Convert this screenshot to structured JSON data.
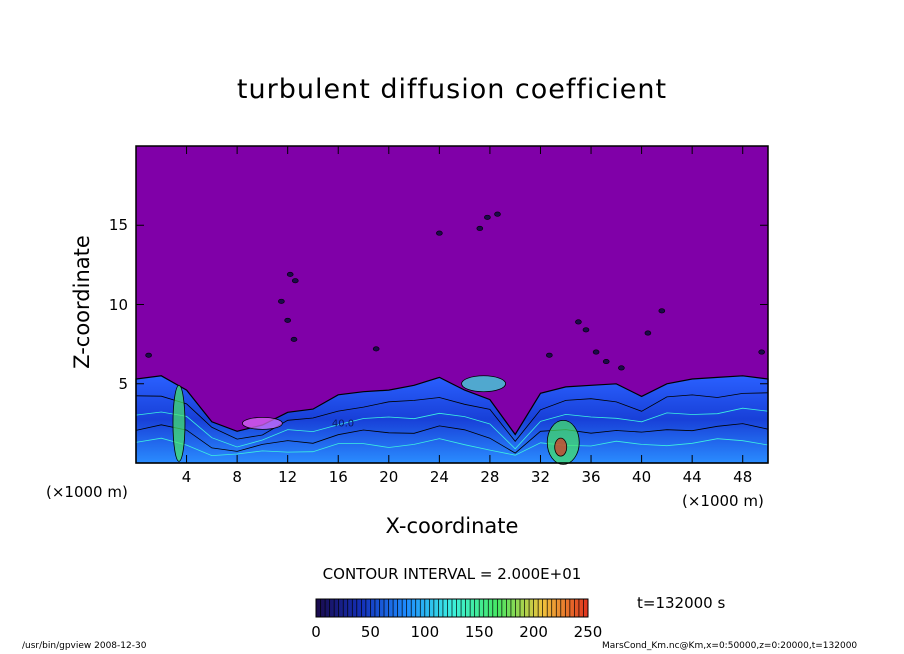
{
  "chart_data": {
    "type": "heatmap",
    "title": "turbulent diffusion coefficient",
    "xlabel": "X-coordinate",
    "ylabel": "Z-coordinate",
    "x_unit_label": "(×1000 m)",
    "xlim": [
      0,
      50
    ],
    "ylim": [
      0,
      20
    ],
    "x_ticks": [
      "4",
      "8",
      "12",
      "16",
      "20",
      "24",
      "28",
      "32",
      "36",
      "40",
      "44",
      "48"
    ],
    "y_ticks": [
      "5",
      "10",
      "15"
    ],
    "contour_interval_label": "CONTOUR INTERVAL = 2.000E+01",
    "contour_annotation": "40.0",
    "colorbar": {
      "ticks": [
        "0",
        "50",
        "100",
        "150",
        "200",
        "250"
      ],
      "range": [
        0,
        250
      ],
      "colors": [
        "#1a0a4a",
        "#1430b8",
        "#1e8cff",
        "#3cf0e0",
        "#46e864",
        "#f0c23c",
        "#e0321e"
      ]
    },
    "background_color": "#8000a8",
    "layer_boundary_z": [
      5.3,
      5.5,
      4.6,
      2.6,
      2.0,
      2.4,
      3.2,
      3.4,
      4.3,
      4.5,
      4.6,
      4.9,
      5.4,
      4.6,
      4.0,
      1.8,
      4.4,
      4.8,
      4.9,
      5.0,
      4.2,
      5.0,
      5.3,
      5.4,
      5.5,
      5.3
    ],
    "time_label": "t=132000 s",
    "footer_left": "/usr/bin/gpview   2008-12-30",
    "footer_right": "MarsCond_Km.nc@Km,x=0:50000,z=0:20000,t=132000"
  }
}
